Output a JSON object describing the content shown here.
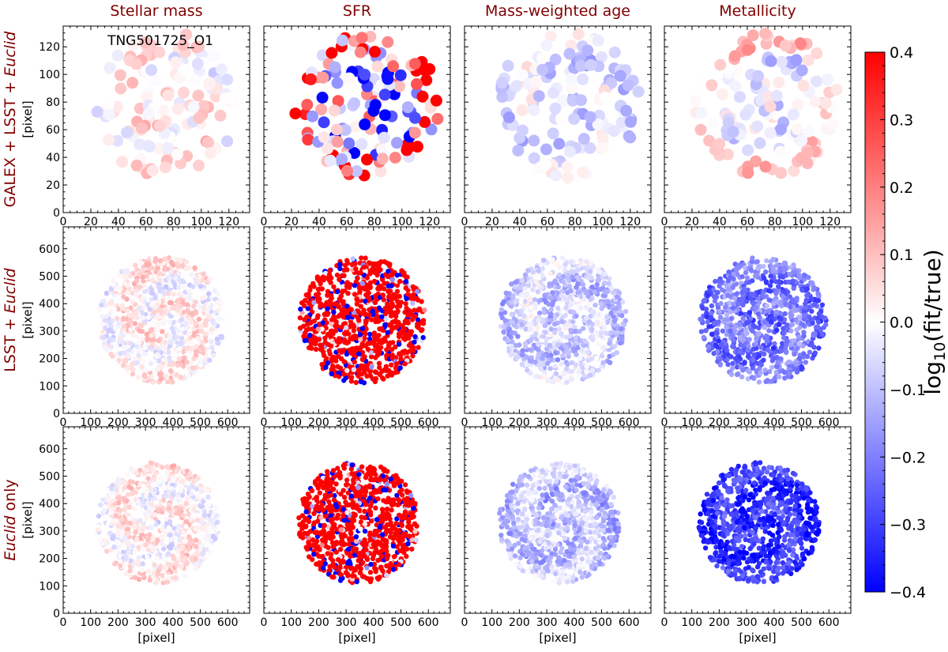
{
  "chart_data": {
    "type": "heatmap",
    "galaxy": "TNG501725_O1",
    "columns": [
      "Stellar mass",
      "SFR",
      "Mass-weighted age",
      "Metallicity"
    ],
    "rows": [
      {
        "pre": "GALEX + LSST + ",
        "italic": "Euclid",
        "post": "",
        "xticks": [
          "0",
          "20",
          "40",
          "60",
          "80",
          "100",
          "120"
        ],
        "yticks": [
          "0",
          "20",
          "40",
          "60",
          "80",
          "100",
          "120"
        ],
        "range": [
          0,
          135
        ],
        "step": 20,
        "minor": 5
      },
      {
        "pre": "LSST + ",
        "italic": "Euclid",
        "post": "",
        "xticks": [
          "0",
          "100",
          "200",
          "300",
          "400",
          "500",
          "600"
        ],
        "yticks": [
          "0",
          "100",
          "200",
          "300",
          "400",
          "500",
          "600"
        ],
        "range": [
          0,
          680
        ],
        "step": 100,
        "minor": 20
      },
      {
        "pre": "",
        "italic": "Euclid",
        "post": " only",
        "xticks": [
          "0",
          "100",
          "200",
          "300",
          "400",
          "500",
          "600"
        ],
        "yticks": [
          "0",
          "100",
          "200",
          "300",
          "400",
          "500",
          "600"
        ],
        "range": [
          0,
          680
        ],
        "step": 100,
        "minor": 20
      }
    ],
    "xlabel": "[pixel]",
    "ylabel": "[pixel]",
    "disk": {
      "row1": {
        "center": [
          75,
          78
        ],
        "radius": 55
      },
      "row2": {
        "center": [
          360,
          340
        ],
        "radius": 235
      },
      "row3": {
        "center": [
          345,
          330
        ],
        "radius": 225
      }
    },
    "panel_mean_log_ratio": [
      [
        0.03,
        0.0,
        -0.05,
        -0.04
      ],
      [
        0.02,
        0.4,
        -0.08,
        -0.22
      ],
      [
        0.02,
        0.4,
        -0.1,
        -0.32
      ]
    ],
    "colorbar": {
      "label_main": "log",
      "label_sub": "10",
      "label_rest": "(fit/true)",
      "ticks": [
        "0.4",
        "0.3",
        "0.2",
        "0.1",
        "0.0",
        "−0.1",
        "−0.2",
        "−0.3",
        "−0.4"
      ],
      "vmin": -0.4,
      "vmax": 0.4,
      "cmap": "bwr",
      "color_low": "#0000ff",
      "color_mid": "#ffffff",
      "color_high": "#ff0000"
    }
  }
}
